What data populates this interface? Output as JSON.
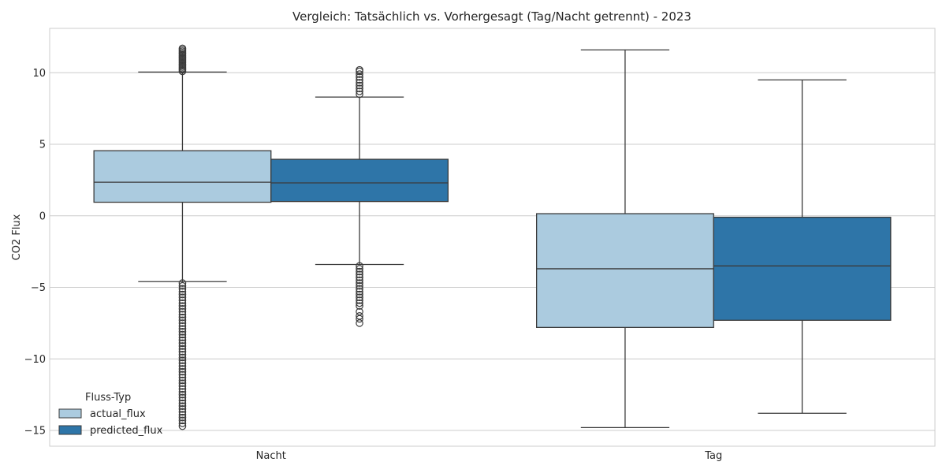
{
  "chart_data": {
    "type": "box",
    "title": "Vergleich: Tatsächlich vs. Vorhergesagt (Tag/Nacht getrennt) - 2023",
    "xlabel": "",
    "ylabel": "CO2 Flux",
    "ylim": [
      -16.1,
      13.1
    ],
    "yticks": [
      10,
      5,
      0,
      -5,
      -10,
      -15
    ],
    "ytick_labels": [
      "10",
      "5",
      "0",
      "−5",
      "−10",
      "−15"
    ],
    "grid": true,
    "categories": [
      "Nacht",
      "Tag"
    ],
    "legend": {
      "title": "Fluss-Typ",
      "placement": "lower-left",
      "entries": [
        "actual_flux",
        "predicted_flux"
      ]
    },
    "series": [
      {
        "name": "actual_flux",
        "color": "#abcbdf",
        "boxes": [
          {
            "category": "Nacht",
            "whisker_low": -4.6,
            "q1": 0.95,
            "median": 2.35,
            "q3": 4.55,
            "whisker_high": 10.05,
            "outliers_high": [
              10.1,
              10.2,
              10.3,
              10.4,
              10.5,
              10.6,
              10.7,
              10.8,
              10.9,
              11.0,
              11.1,
              11.2,
              11.3,
              11.4,
              11.5,
              11.6,
              11.7
            ],
            "outliers_low": [
              -4.7,
              -4.9,
              -5.1,
              -5.3,
              -5.5,
              -5.7,
              -5.9,
              -6.1,
              -6.3,
              -6.5,
              -6.7,
              -6.9,
              -7.1,
              -7.3,
              -7.5,
              -7.7,
              -7.9,
              -8.1,
              -8.3,
              -8.5,
              -8.7,
              -8.9,
              -9.1,
              -9.3,
              -9.5,
              -9.7,
              -9.9,
              -10.1,
              -10.3,
              -10.5,
              -10.7,
              -10.9,
              -11.1,
              -11.3,
              -11.5,
              -11.7,
              -11.9,
              -12.1,
              -12.3,
              -12.5,
              -12.7,
              -12.9,
              -13.1,
              -13.3,
              -13.5,
              -13.7,
              -13.9,
              -14.1,
              -14.3,
              -14.5,
              -14.7
            ]
          },
          {
            "category": "Tag",
            "whisker_low": -14.8,
            "q1": -7.8,
            "median": -3.7,
            "q3": 0.15,
            "whisker_high": 11.6,
            "outliers_high": [],
            "outliers_low": []
          }
        ]
      },
      {
        "name": "predicted_flux",
        "color": "#2e75a8",
        "boxes": [
          {
            "category": "Nacht",
            "whisker_low": -3.4,
            "q1": 1.0,
            "median": 2.3,
            "q3": 3.95,
            "whisker_high": 8.3,
            "outliers_high": [
              8.5,
              8.7,
              8.9,
              9.1,
              9.3,
              9.5,
              9.7,
              9.9,
              10.1,
              10.2
            ],
            "outliers_low": [
              -3.5,
              -3.7,
              -3.9,
              -4.1,
              -4.3,
              -4.5,
              -4.7,
              -4.9,
              -5.1,
              -5.3,
              -5.5,
              -5.7,
              -5.9,
              -6.1,
              -6.3,
              -6.7,
              -7.0,
              -7.2,
              -7.5
            ]
          },
          {
            "category": "Tag",
            "whisker_low": -13.8,
            "q1": -7.3,
            "median": -3.5,
            "q3": -0.1,
            "whisker_high": 9.5,
            "outliers_high": [],
            "outliers_low": []
          }
        ]
      }
    ]
  }
}
